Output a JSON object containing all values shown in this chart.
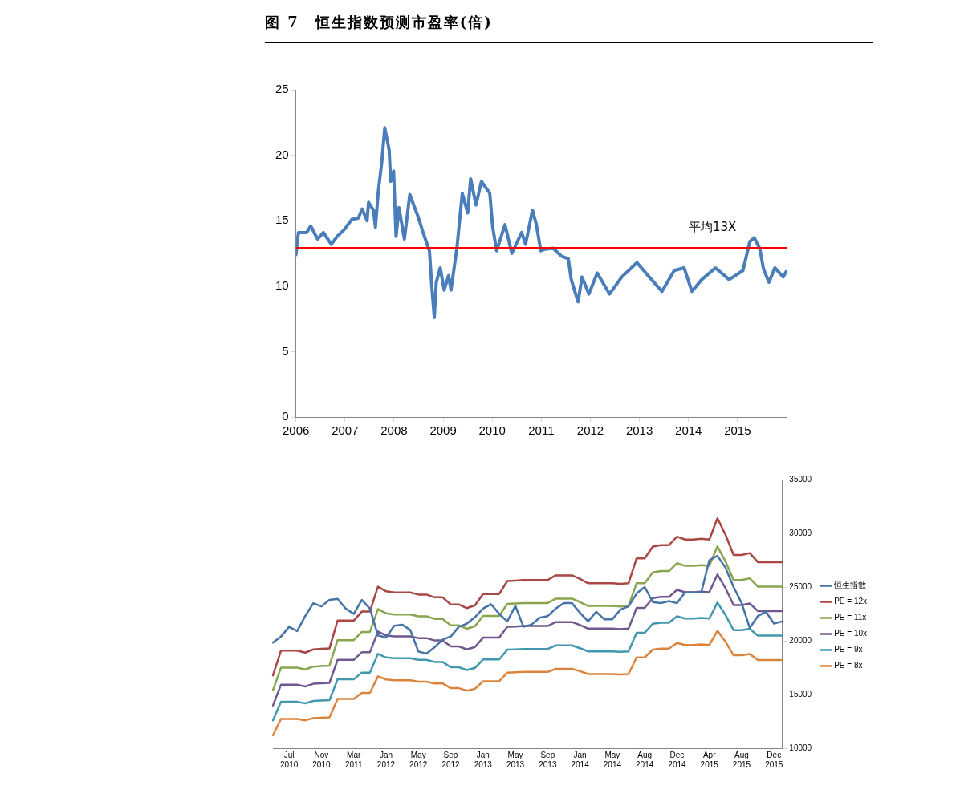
{
  "chart_data": [
    {
      "type": "line",
      "title": "图 7　恒生指数预测市盈率(倍)",
      "x": [
        2006.0,
        2006.05,
        2006.22,
        2006.3,
        2006.44,
        2006.56,
        2006.72,
        2006.84,
        2006.98,
        2007.14,
        2007.27,
        2007.35,
        2007.45,
        2007.48,
        2007.58,
        2007.62,
        2007.68,
        2007.75,
        2007.81,
        2007.9,
        2007.93,
        2007.99,
        2008.04,
        2008.1,
        2008.21,
        2008.32,
        2008.49,
        2008.6,
        2008.72,
        2008.77,
        2008.82,
        2008.86,
        2008.94,
        2009.02,
        2009.11,
        2009.16,
        2009.28,
        2009.39,
        2009.5,
        2009.56,
        2009.67,
        2009.78,
        2009.95,
        2010.01,
        2010.09,
        2010.26,
        2010.4,
        2010.6,
        2010.68,
        2010.82,
        2010.9,
        2010.99,
        2011.05,
        2011.24,
        2011.41,
        2011.55,
        2011.61,
        2011.75,
        2011.83,
        2011.97,
        2012.14,
        2012.39,
        2012.64,
        2012.95,
        2013.2,
        2013.46,
        2013.71,
        2013.91,
        2014.07,
        2014.27,
        2014.55,
        2014.83,
        2015.11,
        2015.25,
        2015.34,
        2015.45,
        2015.53,
        2015.64,
        2015.76,
        2015.93,
        2015.99
      ],
      "series": [
        {
          "color": "#4a7ebb",
          "values": [
            12.4,
            14.1,
            14.1,
            14.6,
            13.6,
            14.1,
            13.2,
            13.8,
            14.3,
            15.1,
            15.2,
            15.9,
            15.0,
            16.4,
            15.8,
            14.5,
            17.3,
            19.5,
            22.1,
            20.4,
            18.0,
            18.8,
            13.8,
            16.0,
            13.6,
            17.0,
            15.3,
            14.0,
            12.7,
            9.9,
            7.6,
            10.3,
            11.4,
            9.7,
            10.8,
            9.7,
            12.9,
            17.1,
            15.6,
            18.2,
            16.2,
            18.0,
            17.1,
            14.5,
            12.7,
            14.7,
            12.5,
            14.1,
            13.2,
            15.8,
            14.7,
            12.7,
            12.8,
            12.9,
            12.3,
            12.1,
            10.5,
            8.8,
            10.7,
            9.4,
            11.0,
            9.4,
            10.7,
            11.8,
            10.7,
            9.6,
            11.2,
            11.4,
            9.6,
            10.5,
            11.4,
            10.5,
            11.2,
            13.4,
            13.7,
            12.9,
            11.3,
            10.3,
            11.4,
            10.7,
            11.1
          ]
        }
      ],
      "xlim": [
        2006,
        2016
      ],
      "xticks": [
        2006,
        2007,
        2008,
        2009,
        2010,
        2011,
        2012,
        2013,
        2014,
        2015
      ],
      "ylim": [
        0,
        25
      ],
      "yticks": [
        0,
        5,
        10,
        15,
        20,
        25
      ],
      "ref_lines": [
        {
          "axis": "y",
          "value": 12.9,
          "label": "平均13X",
          "color": "#ff0000"
        }
      ],
      "grid": false,
      "legend": false,
      "marker": "none"
    },
    {
      "type": "line",
      "categories": [
        null,
        null,
        "Jul 2010",
        null,
        null,
        null,
        "Nov 2010",
        null,
        null,
        null,
        "Mar 2011",
        null,
        null,
        null,
        "Jan 2012",
        null,
        null,
        null,
        "May 2012",
        null,
        null,
        null,
        "Sep 2012",
        null,
        null,
        null,
        "Jan 2013",
        null,
        null,
        null,
        "May 2013",
        null,
        null,
        null,
        "Sep 2013",
        null,
        null,
        null,
        "Jan 2014",
        null,
        null,
        null,
        "May 2014",
        null,
        null,
        null,
        "Aug 2014",
        null,
        null,
        null,
        "Dec 2014",
        null,
        null,
        null,
        "Apr 2015",
        null,
        null,
        null,
        "Aug 2015",
        null,
        null,
        null,
        "Dec 2015",
        null
      ],
      "series": [
        {
          "name": "恒生指數",
          "color": "#4572a7",
          "axis": "y2",
          "values": [
            19830,
            20400,
            21300,
            20900,
            22300,
            23500,
            23200,
            23800,
            23900,
            23000,
            22500,
            23800,
            23000,
            20500,
            20300,
            21400,
            21500,
            21000,
            19000,
            18800,
            19400,
            20100,
            20400,
            21300,
            21600,
            22200,
            23000,
            23400,
            22500,
            21800,
            23250,
            21300,
            21500,
            22150,
            22300,
            23000,
            23500,
            23500,
            22600,
            21800,
            22700,
            22000,
            22000,
            22900,
            23200,
            24400,
            25000,
            23600,
            23500,
            23700,
            23500,
            24500,
            24500,
            24500,
            27500,
            27900,
            26800,
            25000,
            23500,
            21200,
            22300,
            22700,
            21600,
            21800
          ]
        },
        {
          "name": "PE = 12x",
          "color": "#aa4643",
          "axis": "y2",
          "values": [
            16780,
            19090,
            19090,
            19090,
            18900,
            19200,
            19250,
            19300,
            21880,
            21880,
            21880,
            22720,
            22720,
            25040,
            24600,
            24490,
            24490,
            24490,
            24300,
            24300,
            24040,
            24040,
            23380,
            23380,
            23040,
            23300,
            24350,
            24350,
            24350,
            25560,
            25600,
            25650,
            25650,
            25650,
            25650,
            26090,
            26090,
            26090,
            25750,
            25350,
            25350,
            25350,
            25350,
            25300,
            25350,
            27670,
            27670,
            28770,
            28900,
            28900,
            29690,
            29420,
            29420,
            29500,
            29420,
            31400,
            29870,
            27980,
            27980,
            28160,
            27320,
            27320,
            27320,
            27320
          ]
        },
        {
          "name": "PE = 11x",
          "color": "#89a54e",
          "axis": "y2",
          "values": [
            15380,
            17500,
            17500,
            17500,
            17330,
            17600,
            17650,
            17690,
            20060,
            20060,
            20060,
            20830,
            20830,
            22950,
            22550,
            22450,
            22450,
            22450,
            22280,
            22280,
            22040,
            22040,
            21430,
            21430,
            21120,
            21360,
            22320,
            22320,
            22320,
            23430,
            23470,
            23510,
            23510,
            23510,
            23510,
            23920,
            23920,
            23920,
            23600,
            23240,
            23240,
            23240,
            23240,
            23190,
            23240,
            25360,
            25360,
            26370,
            26490,
            26490,
            27220,
            26970,
            26970,
            27040,
            26970,
            28780,
            27380,
            25650,
            25650,
            25810,
            25040,
            25040,
            25040,
            25040
          ]
        },
        {
          "name": "PE = 10x",
          "color": "#71588f",
          "axis": "y2",
          "values": [
            13980,
            15910,
            15910,
            15910,
            15750,
            16000,
            16040,
            16080,
            18230,
            18230,
            18230,
            18930,
            18930,
            20870,
            20500,
            20410,
            20410,
            20410,
            20250,
            20250,
            20030,
            20030,
            19480,
            19480,
            19200,
            19420,
            20290,
            20290,
            20290,
            21300,
            21330,
            21380,
            21380,
            21380,
            21380,
            21740,
            21740,
            21740,
            21460,
            21130,
            21130,
            21130,
            21130,
            21080,
            21130,
            23060,
            23060,
            23980,
            24080,
            24080,
            24740,
            24520,
            24520,
            24580,
            24520,
            26170,
            24890,
            23320,
            23320,
            23470,
            22770,
            22770,
            22770,
            22770
          ]
        },
        {
          "name": "PE = 9x",
          "color": "#4198af",
          "axis": "y2",
          "values": [
            12590,
            14320,
            14320,
            14320,
            14180,
            14400,
            14440,
            14480,
            16410,
            16410,
            16410,
            17040,
            17040,
            18780,
            18450,
            18370,
            18370,
            18370,
            18230,
            18230,
            18030,
            18030,
            17540,
            17540,
            17280,
            17480,
            18260,
            18260,
            18260,
            19170,
            19200,
            19240,
            19240,
            19240,
            19240,
            19570,
            19570,
            19570,
            19310,
            19010,
            19010,
            19010,
            19010,
            18980,
            19010,
            20750,
            20750,
            21580,
            21680,
            21680,
            22270,
            22070,
            22070,
            22130,
            22070,
            23550,
            22400,
            20990,
            20990,
            21120,
            20490,
            20490,
            20490,
            20490
          ]
        },
        {
          "name": "PE = 8x",
          "color": "#db843d",
          "axis": "y2",
          "values": [
            11190,
            12730,
            12730,
            12730,
            12600,
            12800,
            12830,
            12870,
            14590,
            14590,
            14590,
            15150,
            15150,
            16690,
            16400,
            16330,
            16330,
            16330,
            16200,
            16200,
            16030,
            16030,
            15590,
            15590,
            15360,
            15530,
            16230,
            16230,
            16230,
            17040,
            17070,
            17100,
            17100,
            17100,
            17100,
            17390,
            17390,
            17390,
            17170,
            16900,
            16900,
            16900,
            16900,
            16870,
            16900,
            18450,
            18450,
            19180,
            19270,
            19270,
            19790,
            19610,
            19610,
            19670,
            19610,
            20930,
            19910,
            18650,
            18650,
            18770,
            18210,
            18210,
            18210,
            18210
          ]
        }
      ],
      "y2lim": [
        10000,
        35000
      ],
      "y2ticks": [
        10000,
        15000,
        20000,
        25000,
        30000,
        35000
      ],
      "grid": false,
      "legend": "right",
      "marker": "none"
    }
  ]
}
